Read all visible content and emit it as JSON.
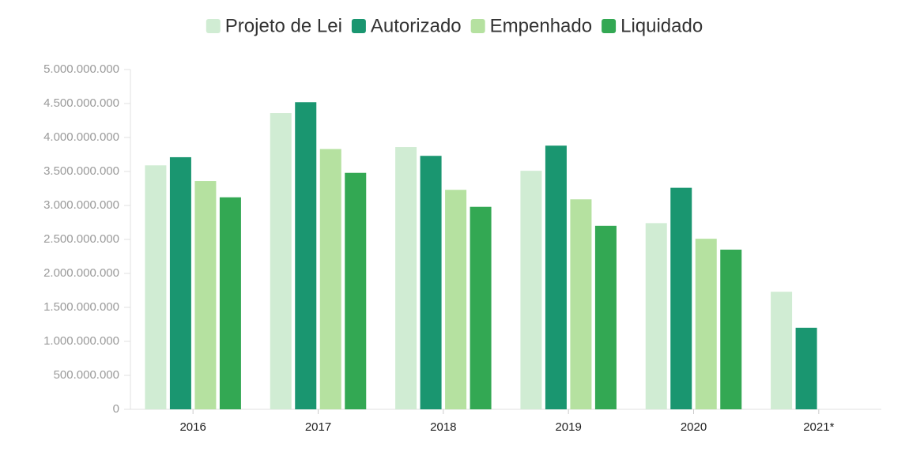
{
  "chart_data": {
    "type": "bar",
    "categories": [
      "2016",
      "2017",
      "2018",
      "2019",
      "2020",
      "2021*"
    ],
    "series": [
      {
        "name": "Projeto de Lei",
        "color": "#d0ecd3",
        "values": [
          3590000000,
          4360000000,
          3860000000,
          3510000000,
          2740000000,
          1730000000
        ]
      },
      {
        "name": "Autorizado",
        "color": "#1a9670",
        "values": [
          3710000000,
          4520000000,
          3730000000,
          3880000000,
          3260000000,
          1200000000
        ]
      },
      {
        "name": "Empenhado",
        "color": "#b5e1a0",
        "values": [
          3360000000,
          3830000000,
          3230000000,
          3090000000,
          2510000000,
          null
        ]
      },
      {
        "name": "Liquidado",
        "color": "#33a853",
        "values": [
          3120000000,
          3480000000,
          2980000000,
          2700000000,
          2350000000,
          null
        ]
      }
    ],
    "ylim": [
      0,
      5000000000
    ],
    "yticks": [
      0,
      {
        "value": 500000000,
        "label": "500.000.000"
      },
      {
        "value": 1000000000,
        "label": "1.000.000.000"
      },
      {
        "value": 1500000000,
        "label": "1.500.000.000"
      },
      {
        "value": 2000000000,
        "label": "2.000.000.000"
      },
      {
        "value": 2500000000,
        "label": "2.500.000.000"
      },
      {
        "value": 3000000000,
        "label": "3.000.000.000"
      },
      {
        "value": 3500000000,
        "label": "3.500.000.000"
      },
      {
        "value": 4000000000,
        "label": "4.000.000.000"
      },
      {
        "value": 4500000000,
        "label": "4.500.000.000"
      },
      {
        "value": 5000000000,
        "label": "5.000.000.000"
      }
    ],
    "legend_position": "top"
  }
}
